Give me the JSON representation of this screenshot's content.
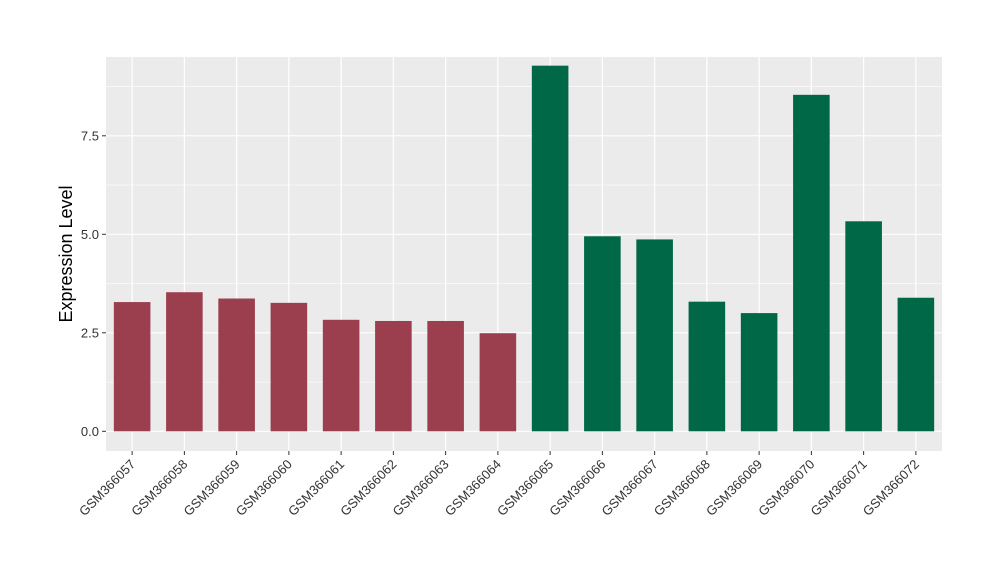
{
  "chart_data": {
    "type": "bar",
    "title": "",
    "xlabel": "",
    "ylabel": "Expression Level",
    "ylim": [
      -0.5,
      9.5
    ],
    "yticks": [
      0.0,
      2.5,
      5.0,
      7.5
    ],
    "ytick_labels": [
      "0.0",
      "2.5",
      "5.0",
      "7.5"
    ],
    "grid": true,
    "legend": "none",
    "categories": [
      "GSM366057",
      "GSM366058",
      "GSM366059",
      "GSM366060",
      "GSM366061",
      "GSM366062",
      "GSM366063",
      "GSM366064",
      "GSM366065",
      "GSM366066",
      "GSM366067",
      "GSM366068",
      "GSM366069",
      "GSM366070",
      "GSM366071",
      "GSM366072"
    ],
    "values": [
      3.28,
      3.53,
      3.37,
      3.26,
      2.83,
      2.8,
      2.8,
      2.49,
      9.28,
      4.95,
      4.87,
      3.29,
      3.0,
      8.54,
      5.33,
      3.39
    ],
    "group_colors": [
      "#9B3F4E",
      "#9B3F4E",
      "#9B3F4E",
      "#9B3F4E",
      "#9B3F4E",
      "#9B3F4E",
      "#9B3F4E",
      "#9B3F4E",
      "#006747",
      "#006747",
      "#006747",
      "#006747",
      "#006747",
      "#006747",
      "#006747",
      "#006747"
    ],
    "panel_background": "#EBEBEB",
    "grid_color": "#FFFFFF"
  }
}
